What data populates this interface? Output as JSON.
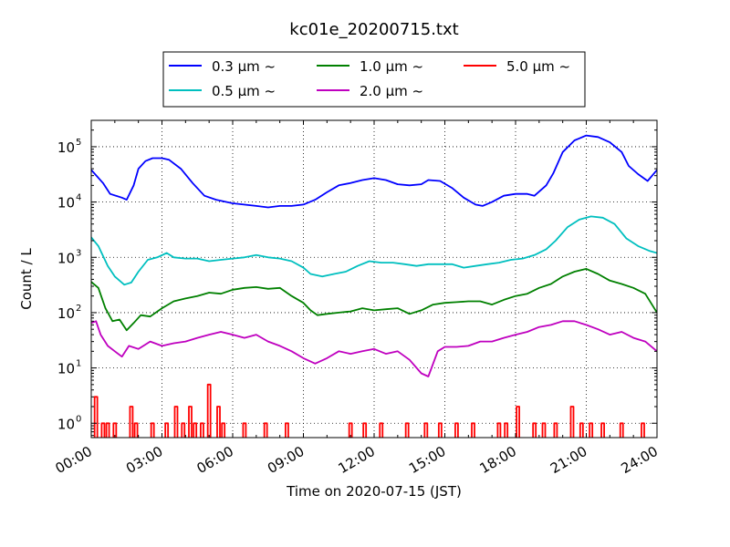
{
  "chart_data": {
    "type": "line",
    "title": "kc01e_20200715.txt",
    "xlabel": "Time on 2020-07-15 (JST)",
    "ylabel": "Count / L",
    "x_unit": "hours (JST)",
    "xlim": [
      0,
      24
    ],
    "ylim": [
      0.55,
      300000
    ],
    "yscale": "log",
    "grid": true,
    "legend_position": "top-center",
    "x_ticks": [
      "00:00",
      "03:00",
      "06:00",
      "09:00",
      "12:00",
      "15:00",
      "18:00",
      "21:00",
      "24:00"
    ],
    "y_ticks": [
      {
        "base": "10",
        "exp": "0",
        "value": 1
      },
      {
        "base": "10",
        "exp": "1",
        "value": 10
      },
      {
        "base": "10",
        "exp": "2",
        "value": 100
      },
      {
        "base": "10",
        "exp": "3",
        "value": 1000
      },
      {
        "base": "10",
        "exp": "4",
        "value": 10000
      },
      {
        "base": "10",
        "exp": "5",
        "value": 100000
      }
    ],
    "series": [
      {
        "name": "0.3 μm ~",
        "legend_value": "0.3",
        "color": "#0000ff",
        "points": [
          [
            0.0,
            38000
          ],
          [
            0.5,
            22000
          ],
          [
            0.8,
            14000
          ],
          [
            1.3,
            12000
          ],
          [
            1.5,
            11000
          ],
          [
            1.8,
            20000
          ],
          [
            2.0,
            40000
          ],
          [
            2.3,
            55000
          ],
          [
            2.6,
            62000
          ],
          [
            3.0,
            62000
          ],
          [
            3.3,
            58000
          ],
          [
            3.8,
            40000
          ],
          [
            4.3,
            22000
          ],
          [
            4.8,
            13000
          ],
          [
            5.3,
            11000
          ],
          [
            6.0,
            9500
          ],
          [
            7.0,
            8500
          ],
          [
            7.5,
            8000
          ],
          [
            8.0,
            8500
          ],
          [
            8.5,
            8500
          ],
          [
            9.0,
            9000
          ],
          [
            9.5,
            11000
          ],
          [
            10.0,
            15000
          ],
          [
            10.5,
            20000
          ],
          [
            11.0,
            22000
          ],
          [
            11.5,
            25000
          ],
          [
            12.0,
            27000
          ],
          [
            12.5,
            25000
          ],
          [
            13.0,
            21000
          ],
          [
            13.5,
            20000
          ],
          [
            14.0,
            21000
          ],
          [
            14.3,
            25000
          ],
          [
            14.8,
            24000
          ],
          [
            15.3,
            18000
          ],
          [
            15.8,
            12000
          ],
          [
            16.3,
            9000
          ],
          [
            16.6,
            8500
          ],
          [
            17.0,
            10000
          ],
          [
            17.5,
            13000
          ],
          [
            18.0,
            14000
          ],
          [
            18.5,
            14000
          ],
          [
            18.8,
            13000
          ],
          [
            19.3,
            20000
          ],
          [
            19.6,
            33000
          ],
          [
            20.0,
            80000
          ],
          [
            20.5,
            130000
          ],
          [
            21.0,
            160000
          ],
          [
            21.5,
            150000
          ],
          [
            22.0,
            120000
          ],
          [
            22.5,
            80000
          ],
          [
            22.8,
            45000
          ],
          [
            23.2,
            32000
          ],
          [
            23.6,
            24000
          ],
          [
            24.0,
            38000
          ]
        ]
      },
      {
        "name": "0.5 μm ~",
        "legend_value": "0.5",
        "color": "#00bfbf",
        "points": [
          [
            0.0,
            2300
          ],
          [
            0.3,
            1600
          ],
          [
            0.7,
            700
          ],
          [
            1.0,
            450
          ],
          [
            1.4,
            320
          ],
          [
            1.7,
            350
          ],
          [
            2.0,
            550
          ],
          [
            2.4,
            900
          ],
          [
            2.8,
            1000
          ],
          [
            3.2,
            1200
          ],
          [
            3.5,
            1000
          ],
          [
            4.0,
            950
          ],
          [
            4.5,
            950
          ],
          [
            5.0,
            850
          ],
          [
            5.5,
            900
          ],
          [
            6.0,
            950
          ],
          [
            6.5,
            1000
          ],
          [
            7.0,
            1100
          ],
          [
            7.5,
            1000
          ],
          [
            8.0,
            950
          ],
          [
            8.5,
            850
          ],
          [
            9.0,
            650
          ],
          [
            9.3,
            500
          ],
          [
            9.8,
            450
          ],
          [
            10.3,
            500
          ],
          [
            10.8,
            550
          ],
          [
            11.3,
            700
          ],
          [
            11.8,
            850
          ],
          [
            12.3,
            800
          ],
          [
            12.8,
            800
          ],
          [
            13.3,
            750
          ],
          [
            13.8,
            700
          ],
          [
            14.3,
            750
          ],
          [
            14.8,
            750
          ],
          [
            15.3,
            750
          ],
          [
            15.8,
            650
          ],
          [
            16.3,
            700
          ],
          [
            16.8,
            750
          ],
          [
            17.3,
            800
          ],
          [
            17.8,
            900
          ],
          [
            18.3,
            950
          ],
          [
            18.8,
            1100
          ],
          [
            19.3,
            1400
          ],
          [
            19.7,
            2000
          ],
          [
            20.2,
            3500
          ],
          [
            20.7,
            4800
          ],
          [
            21.2,
            5500
          ],
          [
            21.7,
            5200
          ],
          [
            22.2,
            4000
          ],
          [
            22.7,
            2200
          ],
          [
            23.2,
            1600
          ],
          [
            23.7,
            1300
          ],
          [
            24.0,
            1200
          ]
        ]
      },
      {
        "name": "1.0 μm ~",
        "legend_value": "1.0",
        "color": "#008000",
        "points": [
          [
            0.0,
            360
          ],
          [
            0.3,
            280
          ],
          [
            0.6,
            120
          ],
          [
            0.9,
            70
          ],
          [
            1.2,
            75
          ],
          [
            1.5,
            48
          ],
          [
            1.8,
            65
          ],
          [
            2.1,
            90
          ],
          [
            2.5,
            85
          ],
          [
            3.0,
            120
          ],
          [
            3.5,
            160
          ],
          [
            4.0,
            180
          ],
          [
            4.5,
            200
          ],
          [
            5.0,
            230
          ],
          [
            5.5,
            220
          ],
          [
            6.0,
            260
          ],
          [
            6.5,
            280
          ],
          [
            7.0,
            290
          ],
          [
            7.5,
            270
          ],
          [
            8.0,
            280
          ],
          [
            8.5,
            200
          ],
          [
            9.0,
            150
          ],
          [
            9.3,
            110
          ],
          [
            9.6,
            90
          ],
          [
            10.0,
            95
          ],
          [
            10.5,
            100
          ],
          [
            11.0,
            105
          ],
          [
            11.5,
            120
          ],
          [
            12.0,
            110
          ],
          [
            12.5,
            115
          ],
          [
            13.0,
            120
          ],
          [
            13.5,
            95
          ],
          [
            14.0,
            110
          ],
          [
            14.5,
            140
          ],
          [
            15.0,
            150
          ],
          [
            15.5,
            155
          ],
          [
            16.0,
            160
          ],
          [
            16.5,
            160
          ],
          [
            17.0,
            140
          ],
          [
            17.5,
            170
          ],
          [
            18.0,
            200
          ],
          [
            18.5,
            220
          ],
          [
            19.0,
            280
          ],
          [
            19.5,
            330
          ],
          [
            20.0,
            450
          ],
          [
            20.5,
            550
          ],
          [
            21.0,
            620
          ],
          [
            21.5,
            500
          ],
          [
            22.0,
            380
          ],
          [
            22.5,
            330
          ],
          [
            23.0,
            280
          ],
          [
            23.5,
            220
          ],
          [
            24.0,
            100
          ]
        ]
      },
      {
        "name": "2.0 μm ~",
        "legend_value": "2.0",
        "color": "#bf00bf",
        "points": [
          [
            0.0,
            65
          ],
          [
            0.2,
            70
          ],
          [
            0.4,
            40
          ],
          [
            0.7,
            25
          ],
          [
            1.0,
            20
          ],
          [
            1.3,
            16
          ],
          [
            1.6,
            25
          ],
          [
            2.0,
            22
          ],
          [
            2.5,
            30
          ],
          [
            3.0,
            25
          ],
          [
            3.5,
            28
          ],
          [
            4.0,
            30
          ],
          [
            4.5,
            35
          ],
          [
            5.0,
            40
          ],
          [
            5.5,
            45
          ],
          [
            6.0,
            40
          ],
          [
            6.5,
            35
          ],
          [
            7.0,
            40
          ],
          [
            7.5,
            30
          ],
          [
            8.0,
            25
          ],
          [
            8.5,
            20
          ],
          [
            9.0,
            15
          ],
          [
            9.5,
            12
          ],
          [
            10.0,
            15
          ],
          [
            10.5,
            20
          ],
          [
            11.0,
            18
          ],
          [
            11.5,
            20
          ],
          [
            12.0,
            22
          ],
          [
            12.5,
            18
          ],
          [
            13.0,
            20
          ],
          [
            13.5,
            14
          ],
          [
            14.0,
            8
          ],
          [
            14.3,
            7
          ],
          [
            14.7,
            20
          ],
          [
            15.0,
            24
          ],
          [
            15.5,
            24
          ],
          [
            16.0,
            25
          ],
          [
            16.5,
            30
          ],
          [
            17.0,
            30
          ],
          [
            17.5,
            35
          ],
          [
            18.0,
            40
          ],
          [
            18.5,
            45
          ],
          [
            19.0,
            55
          ],
          [
            19.5,
            60
          ],
          [
            20.0,
            70
          ],
          [
            20.5,
            70
          ],
          [
            21.0,
            60
          ],
          [
            21.5,
            50
          ],
          [
            22.0,
            40
          ],
          [
            22.5,
            45
          ],
          [
            23.0,
            35
          ],
          [
            23.5,
            30
          ],
          [
            24.0,
            20
          ]
        ]
      },
      {
        "name": "5.0 μm ~",
        "legend_value": "5.0",
        "color": "#ff0000",
        "points": [
          [
            0.2,
            3
          ],
          [
            0.5,
            1
          ],
          [
            0.7,
            1
          ],
          [
            1.0,
            1
          ],
          [
            1.7,
            2
          ],
          [
            1.9,
            1
          ],
          [
            2.6,
            1
          ],
          [
            3.2,
            1
          ],
          [
            3.6,
            2
          ],
          [
            3.9,
            1
          ],
          [
            4.2,
            2
          ],
          [
            4.4,
            1
          ],
          [
            4.7,
            1
          ],
          [
            5.0,
            5
          ],
          [
            5.4,
            2
          ],
          [
            5.6,
            1
          ],
          [
            6.5,
            1
          ],
          [
            7.4,
            1
          ],
          [
            8.3,
            1
          ],
          [
            11.0,
            1
          ],
          [
            11.6,
            1
          ],
          [
            12.3,
            1
          ],
          [
            13.4,
            1
          ],
          [
            14.2,
            1
          ],
          [
            14.8,
            1
          ],
          [
            15.5,
            1
          ],
          [
            16.2,
            1
          ],
          [
            17.3,
            1
          ],
          [
            17.6,
            1
          ],
          [
            18.1,
            2
          ],
          [
            18.8,
            1
          ],
          [
            19.2,
            1
          ],
          [
            19.7,
            1
          ],
          [
            20.4,
            2
          ],
          [
            20.8,
            1
          ],
          [
            21.2,
            1
          ],
          [
            21.7,
            1
          ],
          [
            22.5,
            1
          ],
          [
            23.4,
            1
          ]
        ]
      }
    ]
  }
}
